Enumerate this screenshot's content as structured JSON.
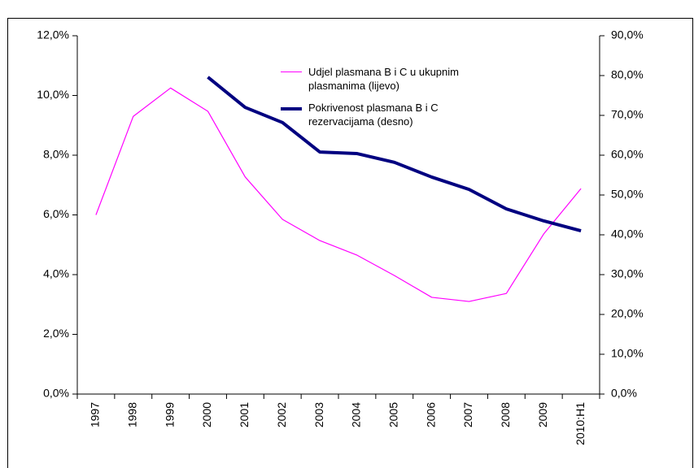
{
  "chart_data": {
    "type": "line",
    "categories": [
      "1997",
      "1998",
      "1999",
      "2000",
      "2001",
      "2002",
      "2003",
      "2004",
      "2005",
      "2006",
      "2007",
      "2008",
      "2009",
      "2010:H1"
    ],
    "series": [
      {
        "name": "Udjel plasmana B i C u ukupnim plasmanima (lijevo)",
        "color": "#ff00ff",
        "axis": "y",
        "values": [
          6.0,
          9.3,
          10.25,
          9.47,
          7.27,
          5.85,
          5.14,
          4.65,
          3.97,
          3.24,
          3.1,
          3.37,
          5.36,
          6.88
        ]
      },
      {
        "name": "Pokrivenost plasmana B i C rezervacijama (desno)",
        "color": "#000080",
        "axis": "y2",
        "values": [
          null,
          null,
          null,
          79.6,
          72.0,
          68.2,
          60.8,
          60.4,
          58.2,
          54.5,
          51.4,
          46.5,
          43.5,
          41.0
        ]
      }
    ],
    "ylim": [
      0,
      12
    ],
    "yticks": [
      {
        "value": 0,
        "label": "0,0%"
      },
      {
        "value": 2,
        "label": "2,0%"
      },
      {
        "value": 4,
        "label": "4,0%"
      },
      {
        "value": 6,
        "label": "6,0%"
      },
      {
        "value": 8,
        "label": "8,0%"
      },
      {
        "value": 10,
        "label": "10,0%"
      },
      {
        "value": 12,
        "label": "12,0%"
      }
    ],
    "y2lim": [
      0,
      90
    ],
    "y2ticks": [
      {
        "value": 0,
        "label": "0,0%"
      },
      {
        "value": 10,
        "label": "10,0%"
      },
      {
        "value": 20,
        "label": "20,0%"
      },
      {
        "value": 30,
        "label": "30,0%"
      },
      {
        "value": 40,
        "label": "40,0%"
      },
      {
        "value": 50,
        "label": "50,0%"
      },
      {
        "value": 60,
        "label": "60,0%"
      },
      {
        "value": 70,
        "label": "70,0%"
      },
      {
        "value": 80,
        "label": "80,0%"
      },
      {
        "value": 90,
        "label": "90,0%"
      }
    ],
    "grid": false
  }
}
